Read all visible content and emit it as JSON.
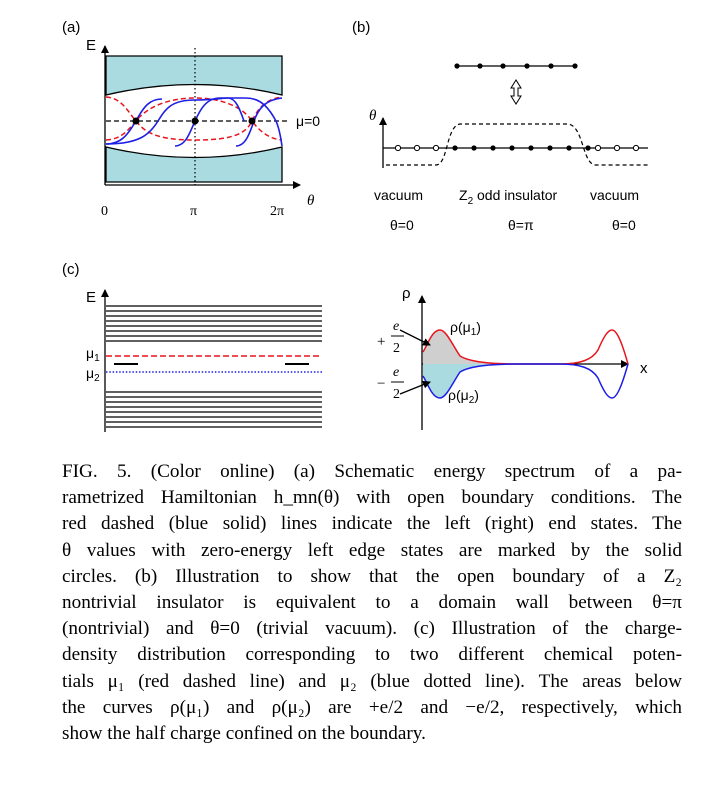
{
  "panel_a": {
    "label": "(a)",
    "axis_e": "E",
    "axis_theta": "θ",
    "mu_label": "μ=0",
    "ticks": [
      "0",
      "π",
      "2π"
    ]
  },
  "panel_b": {
    "label": "(b)",
    "axis_theta": "θ",
    "region_left": "vacuum",
    "region_mid_pre": "Z",
    "region_mid_sub": "2",
    "region_mid_post": " odd insulator",
    "region_right": "vacuum",
    "theta_left": "θ=0",
    "theta_mid": "θ=π",
    "theta_right": "θ=0"
  },
  "panel_c": {
    "label": "(c)",
    "axis_e": "E",
    "mu1": "μ",
    "mu1_sub": "1",
    "mu2": "μ",
    "mu2_sub": "2",
    "axis_rho": "ρ",
    "axis_x": "x",
    "plus_sign": "+",
    "minus_sign": "−",
    "frac_num": "e",
    "frac_den": "2",
    "rho1_label": "ρ(μ",
    "rho1_sub": "1",
    "rho2_label": "ρ(μ",
    "rho2_sub": "2",
    "close_paren": ")"
  },
  "colors": {
    "band_fill": "#a9dbe0",
    "red": "#e8141c",
    "blue": "#1e1ee6",
    "gray_fill": "#cfcfcf"
  },
  "caption": {
    "lines": [
      "FIG. 5. (Color online) (a) Schematic energy spectrum of a pa-",
      "rametrized Hamiltonian h_mn(θ) with open boundary conditions. The",
      "red dashed (blue solid) lines indicate the left (right) end states. The",
      "θ values with zero-energy left edge states are marked by the solid",
      "circles. (b) Illustration to show that the open boundary of a Z₂",
      "nontrivial insulator is equivalent to a domain wall between θ=π",
      "(nontrivial) and θ=0 (trivial vacuum). (c) Illustration of the charge-",
      "density distribution corresponding to two different chemical poten-",
      "tials μ₁ (red dashed line) and μ₂ (blue dotted line). The areas below",
      "the curves ρ(μ₁) and ρ(μ₂) are +e/2 and −e/2, respectively, which",
      "show the half charge confined on the boundary."
    ]
  }
}
